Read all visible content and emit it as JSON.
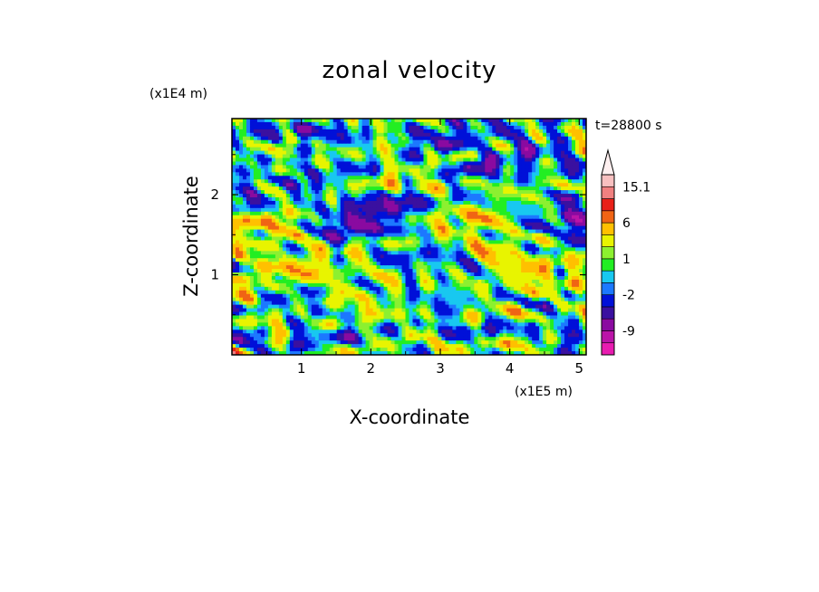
{
  "chart_data": {
    "type": "heatmap",
    "title": "zonal velocity",
    "xlabel": "X-coordinate",
    "ylabel": "Z-coordinate",
    "x_unit": "(x1E5 m)",
    "y_unit": "(x1E4 m)",
    "time_label": "t=28800 s",
    "xlim": [
      0,
      5.1
    ],
    "ylim": [
      0,
      2.95
    ],
    "x_ticks": [
      1,
      2,
      3,
      4,
      5
    ],
    "y_ticks": [
      1,
      2
    ],
    "field_description_range": [
      -15,
      15.1
    ],
    "colorbar": {
      "levels": [
        -15,
        -12,
        -9,
        -6,
        -4,
        -2,
        -1,
        0,
        1,
        2,
        4,
        6,
        9,
        12,
        15.1
      ],
      "colors": [
        "#e81cb0",
        "#bb14a8",
        "#8a0aa0",
        "#3a10a0",
        "#0010d8",
        "#1c78ff",
        "#18c8f0",
        "#22ee22",
        "#8cf030",
        "#e8f400",
        "#ffc000",
        "#f06414",
        "#e82018",
        "#f08080",
        "#f8c0c0",
        "#fff0f0"
      ],
      "tick_labels": [
        "15.1",
        "6",
        "1",
        "-2",
        "-9"
      ],
      "tick_values": [
        15.1,
        6,
        1,
        -2,
        -9
      ],
      "extend": "max"
    }
  }
}
